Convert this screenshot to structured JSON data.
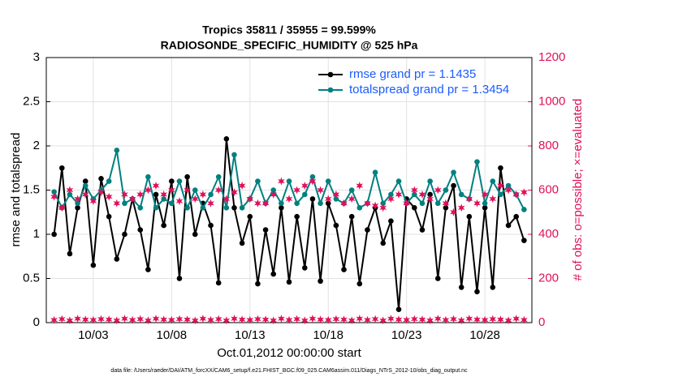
{
  "chart_data": {
    "type": "line",
    "title": "Tropics 35811 / 35955 = 99.599%",
    "subtitle": "RADIOSONDE_SPECIFIC_HUMIDITY @ 525 hPa",
    "x_label": "Oct.01,2012 00:00:00 start",
    "y_label": "rmse and totalspread",
    "y2_label": "# of obs: o=possible; ×=evaluated",
    "footer": "data file: /Users/raeder/DAI/ATM_forcXX/CAM6_setup/f.e21.FHIST_BGC.f09_025.CAM6assim.011/Diags_NTrS_2012-10/obs_diag_output.nc",
    "xlim": [
      0,
      31
    ],
    "xticks": [
      {
        "value": 3,
        "label": "10/03"
      },
      {
        "value": 8,
        "label": "10/08"
      },
      {
        "value": 13,
        "label": "10/13"
      },
      {
        "value": 18,
        "label": "10/18"
      },
      {
        "value": 23,
        "label": "10/23"
      },
      {
        "value": 28,
        "label": "10/28"
      }
    ],
    "ylim": [
      0,
      3
    ],
    "yticks": [
      0,
      0.5,
      1,
      1.5,
      2,
      2.5,
      3
    ],
    "y2lim": [
      0,
      1200
    ],
    "y2ticks": [
      0,
      200,
      400,
      600,
      800,
      1000,
      1200
    ],
    "grid": true,
    "legend": "upper right",
    "x": [
      0.5,
      1,
      1.5,
      2,
      2.5,
      3,
      3.5,
      4,
      4.5,
      5,
      5.5,
      6,
      6.5,
      7,
      7.5,
      8,
      8.5,
      9,
      9.5,
      10,
      10.5,
      11,
      11.5,
      12,
      12.5,
      13,
      13.5,
      14,
      14.5,
      15,
      15.5,
      16,
      16.5,
      17,
      17.5,
      18,
      18.5,
      19,
      19.5,
      20,
      20.5,
      21,
      21.5,
      22,
      22.5,
      23,
      23.5,
      24,
      24.5,
      25,
      25.5,
      26,
      26.5,
      27,
      27.5,
      28,
      28.5,
      29,
      29.5,
      30,
      30.5
    ],
    "series": [
      {
        "name": "rmse grand pr = 1.1435",
        "color": "#000000",
        "axis": "y",
        "values": [
          1.0,
          1.75,
          0.78,
          1.3,
          1.6,
          0.65,
          1.63,
          1.2,
          0.72,
          1.0,
          1.4,
          1.05,
          0.6,
          1.45,
          1.1,
          1.6,
          0.5,
          1.65,
          1.0,
          1.35,
          1.1,
          0.45,
          2.08,
          1.3,
          0.9,
          1.2,
          0.44,
          1.05,
          0.55,
          1.3,
          0.46,
          1.2,
          0.62,
          1.4,
          0.47,
          1.35,
          1.1,
          0.6,
          1.2,
          0.44,
          1.05,
          1.3,
          0.9,
          1.15,
          0.15,
          1.4,
          1.3,
          1.05,
          1.45,
          0.5,
          1.3,
          1.55,
          0.4,
          1.2,
          0.35,
          1.3,
          0.4,
          1.75,
          1.1,
          1.2,
          0.93
        ]
      },
      {
        "name": "totalspread grand pr = 1.3454",
        "color": "#008080",
        "axis": "y",
        "values": [
          1.48,
          1.3,
          1.45,
          1.35,
          1.55,
          1.4,
          1.5,
          1.6,
          1.95,
          1.35,
          1.4,
          1.3,
          1.65,
          1.3,
          1.4,
          1.35,
          1.6,
          1.3,
          1.5,
          1.3,
          1.45,
          1.65,
          1.3,
          1.9,
          1.3,
          1.4,
          1.6,
          1.35,
          1.5,
          1.35,
          1.6,
          1.35,
          1.45,
          1.65,
          1.35,
          1.6,
          1.4,
          1.35,
          1.5,
          1.3,
          1.35,
          1.7,
          1.35,
          1.45,
          1.6,
          1.35,
          1.45,
          1.35,
          1.6,
          1.35,
          1.5,
          1.7,
          1.45,
          1.4,
          1.82,
          1.35,
          1.6,
          1.45,
          1.55,
          1.45,
          1.28
        ]
      },
      {
        "color": "#e0105a",
        "axis": "y2",
        "marker": "star",
        "values": [
          570,
          520,
          600,
          560,
          580,
          550,
          590,
          570,
          540,
          580,
          560,
          580,
          600,
          620,
          580,
          600,
          550,
          600,
          560,
          580,
          540,
          600,
          560,
          590,
          620,
          560,
          540,
          540,
          580,
          640,
          560,
          600,
          620,
          640,
          600,
          560,
          580,
          540,
          560,
          620,
          540,
          530,
          520,
          560,
          580,
          540,
          600,
          580,
          560,
          600,
          540,
          500,
          520,
          560,
          540,
          580,
          560,
          620,
          600,
          580,
          590
        ]
      },
      {
        "color": "#e0105a",
        "axis": "y2",
        "marker": "star",
        "values": [
          12,
          16,
          10,
          18,
          14,
          12,
          16,
          14,
          10,
          18,
          12,
          16,
          10,
          18,
          14,
          12,
          16,
          14,
          10,
          18,
          12,
          16,
          10,
          18,
          14,
          12,
          16,
          14,
          10,
          18,
          12,
          16,
          10,
          18,
          14,
          12,
          16,
          14,
          10,
          18,
          12,
          16,
          10,
          18,
          14,
          12,
          16,
          14,
          10,
          18,
          12,
          16,
          10,
          18,
          14,
          12,
          16,
          14,
          10,
          18,
          12
        ]
      }
    ]
  }
}
